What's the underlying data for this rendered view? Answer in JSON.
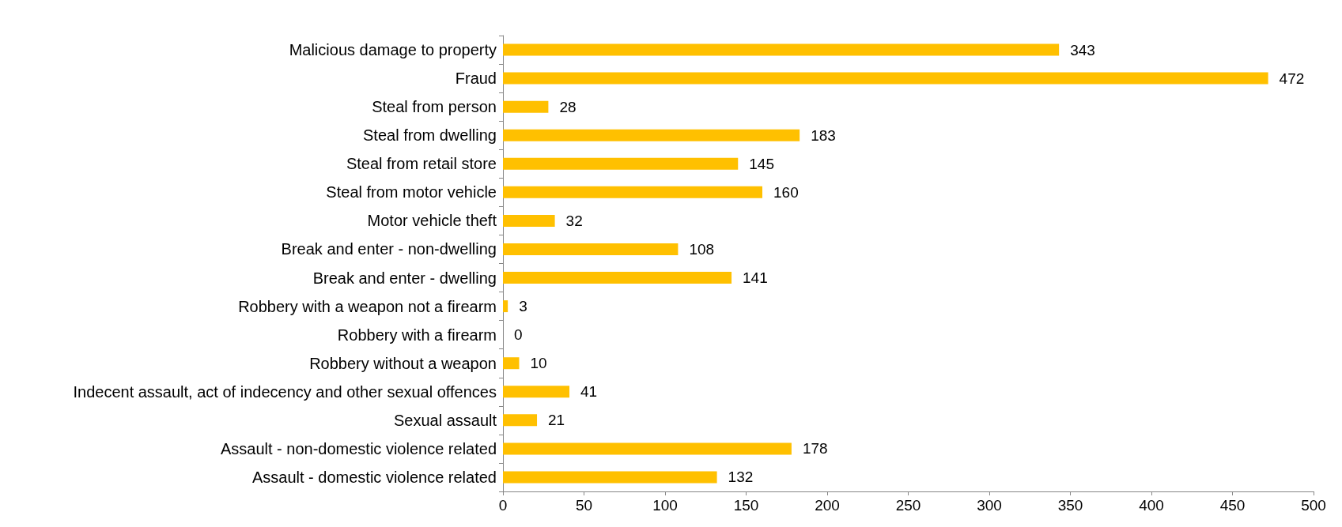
{
  "chart_data": {
    "type": "bar",
    "orientation": "horizontal",
    "categories": [
      "Malicious damage to property",
      "Fraud",
      "Steal from person",
      "Steal from dwelling",
      "Steal from retail store",
      "Steal from motor vehicle",
      "Motor vehicle theft",
      "Break and enter - non-dwelling",
      "Break and enter - dwelling",
      "Robbery with a weapon not a firearm",
      "Robbery with a firearm",
      "Robbery without a weapon",
      "Indecent assault, act of indecency and other sexual offences",
      "Sexual assault",
      "Assault - non-domestic violence related",
      "Assault - domestic violence related"
    ],
    "values": [
      343,
      472,
      28,
      183,
      145,
      160,
      32,
      108,
      141,
      3,
      0,
      10,
      41,
      21,
      178,
      132
    ],
    "color": "#ffc000",
    "xlim": [
      0,
      500
    ],
    "xticks": [
      0,
      50,
      100,
      150,
      200,
      250,
      300,
      350,
      400,
      450,
      500
    ],
    "grid": false,
    "data_labels": true
  }
}
